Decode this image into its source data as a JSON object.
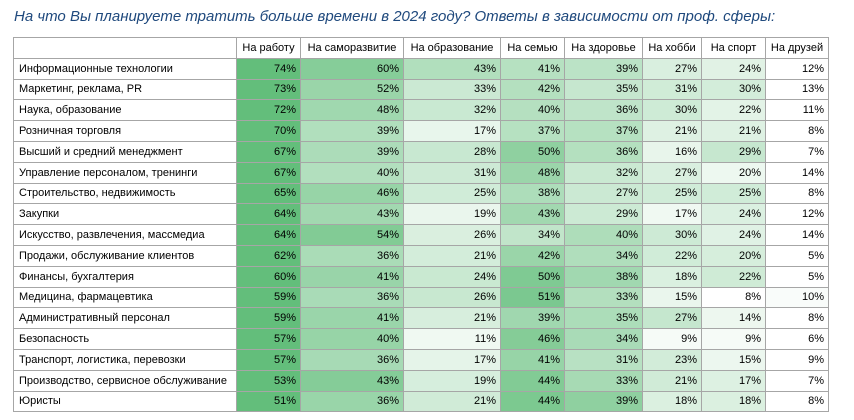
{
  "title": "На что Вы планируете тратить больше времени в 2024 году? Ответы в зависимости от проф. сферы:",
  "chart_data": {
    "type": "heatmap",
    "title": "На что Вы планируете тратить больше времени в 2024 году? Ответы в зависимости от проф. сферы:",
    "columns": [
      "На работу",
      "На саморазвитие",
      "На образование",
      "На семью",
      "На здоровье",
      "На хобби",
      "На спорт",
      "На друзей"
    ],
    "unit": "%",
    "color_low": "#ffffff",
    "color_high": "#63be7b",
    "rows": [
      {
        "label": "Информационные технологии",
        "values": [
          74,
          60,
          43,
          41,
          39,
          27,
          24,
          12
        ]
      },
      {
        "label": "Маркетинг, реклама, PR",
        "values": [
          73,
          52,
          33,
          42,
          35,
          31,
          30,
          13
        ]
      },
      {
        "label": "Наука, образование",
        "values": [
          72,
          48,
          32,
          40,
          36,
          30,
          22,
          11
        ]
      },
      {
        "label": "Розничная торговля",
        "values": [
          70,
          39,
          17,
          37,
          37,
          21,
          21,
          8
        ]
      },
      {
        "label": "Высший и средний менеджмент",
        "values": [
          67,
          39,
          28,
          50,
          36,
          16,
          29,
          7
        ]
      },
      {
        "label": "Управление персоналом, тренинги",
        "values": [
          67,
          40,
          31,
          48,
          32,
          27,
          20,
          14
        ]
      },
      {
        "label": "Строительство, недвижимость",
        "values": [
          65,
          46,
          25,
          38,
          27,
          25,
          25,
          8
        ]
      },
      {
        "label": "Закупки",
        "values": [
          64,
          43,
          19,
          43,
          29,
          17,
          24,
          12
        ]
      },
      {
        "label": "Искусство, развлечения, массмедиа",
        "values": [
          64,
          54,
          26,
          34,
          40,
          30,
          24,
          14
        ]
      },
      {
        "label": "Продажи, обслуживание клиентов",
        "values": [
          62,
          36,
          21,
          42,
          34,
          22,
          20,
          5
        ]
      },
      {
        "label": "Финансы, бухгалтерия",
        "values": [
          60,
          41,
          24,
          50,
          38,
          18,
          22,
          5
        ]
      },
      {
        "label": "Медицина, фармацевтика",
        "values": [
          59,
          36,
          26,
          51,
          33,
          15,
          8,
          10
        ]
      },
      {
        "label": "Административный персонал",
        "values": [
          59,
          41,
          21,
          39,
          35,
          27,
          14,
          8
        ]
      },
      {
        "label": "Безопасность",
        "values": [
          57,
          40,
          11,
          46,
          34,
          9,
          9,
          6
        ]
      },
      {
        "label": "Транспорт, логистика, перевозки",
        "values": [
          57,
          36,
          17,
          41,
          31,
          23,
          15,
          9
        ]
      },
      {
        "label": "Производство, сервисное обслуживание",
        "values": [
          53,
          43,
          19,
          44,
          33,
          21,
          17,
          7
        ]
      },
      {
        "label": "Юристы",
        "values": [
          51,
          36,
          21,
          44,
          39,
          18,
          18,
          8
        ]
      }
    ]
  }
}
